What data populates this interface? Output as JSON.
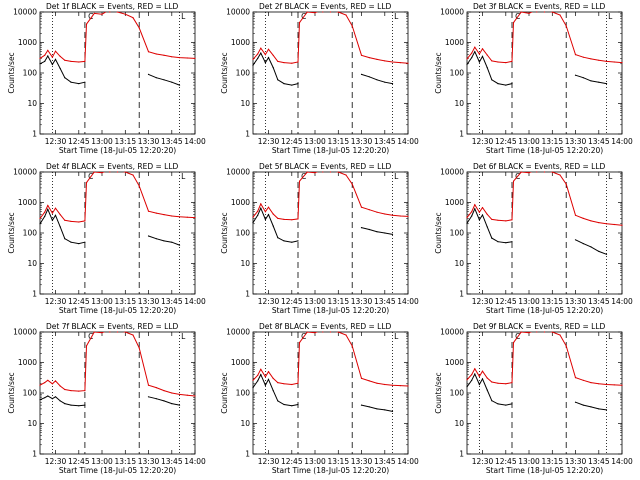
{
  "chart_data": [
    {
      "type": "line",
      "title": "Det 1f BLACK = Events, RED = LLD",
      "xlabel": "Start Time (18-Jul-05 12:20:20)",
      "ylabel": "Counts/sec",
      "xticks": [
        "12:30",
        "12:45",
        "13:00",
        "13:15",
        "13:30",
        "13:45",
        "14:00"
      ],
      "yticks": [
        "1",
        "10",
        "100",
        "1000",
        "10000"
      ],
      "ylim": [
        1,
        10000
      ],
      "ylog": true,
      "x": [
        "12:20",
        "12:23",
        "12:25",
        "12:28",
        "12:30",
        "12:33",
        "12:36",
        "12:40",
        "12:45",
        "12:49",
        "12:50",
        "12:55",
        "13:00",
        "13:05",
        "13:10",
        "13:15",
        "13:20",
        "13:24",
        "13:30",
        "13:35",
        "13:40",
        "13:45",
        "13:50",
        "13:55",
        "14:00"
      ],
      "series": [
        {
          "name": "BLACK = Events",
          "color": "#000000",
          "values": [
            200,
            240,
            360,
            190,
            280,
            140,
            70,
            50,
            45,
            50,
            null,
            null,
            null,
            null,
            null,
            null,
            null,
            null,
            90,
            70,
            60,
            50,
            40,
            null,
            null
          ]
        },
        {
          "name": "RED = LLD",
          "color": "#dd0000",
          "values": [
            300,
            380,
            550,
            330,
            520,
            350,
            260,
            240,
            230,
            240,
            4000,
            9000,
            8500,
            12000,
            10000,
            8500,
            6500,
            3000,
            500,
            420,
            380,
            340,
            320,
            310,
            300
          ]
        }
      ],
      "annotations": [
        "C",
        "L"
      ]
    },
    {
      "type": "line",
      "title": "Det 2f BLACK = Events, RED = LLD",
      "xlabel": "Start Time (18-Jul-05 12:20:20)",
      "ylabel": "Counts/sec",
      "xticks": [
        "12:30",
        "12:45",
        "13:00",
        "13:15",
        "13:30",
        "13:45",
        "14:00"
      ],
      "yticks": [
        "1",
        "10",
        "100",
        "1000",
        "10000"
      ],
      "ylim": [
        1,
        10000
      ],
      "ylog": true,
      "x": [
        "12:20",
        "12:23",
        "12:25",
        "12:28",
        "12:30",
        "12:33",
        "12:36",
        "12:40",
        "12:45",
        "12:49",
        "12:50",
        "12:55",
        "13:00",
        "13:05",
        "13:10",
        "13:15",
        "13:20",
        "13:24",
        "13:30",
        "13:35",
        "13:40",
        "13:45",
        "13:50",
        "13:55",
        "14:00"
      ],
      "series": [
        {
          "name": "BLACK = Events",
          "color": "#000000",
          "values": [
            180,
            300,
            450,
            220,
            320,
            150,
            60,
            45,
            40,
            45,
            null,
            null,
            null,
            null,
            null,
            null,
            null,
            null,
            90,
            75,
            60,
            50,
            45,
            null,
            null
          ]
        },
        {
          "name": "RED = LLD",
          "color": "#dd0000",
          "values": [
            280,
            420,
            650,
            400,
            600,
            380,
            240,
            220,
            210,
            230,
            4500,
            10000,
            9500,
            12000,
            11000,
            10000,
            8000,
            3500,
            380,
            320,
            280,
            250,
            230,
            220,
            210
          ]
        }
      ],
      "annotations": [
        "C",
        "L"
      ]
    },
    {
      "type": "line",
      "title": "Det 3f BLACK = Events, RED = LLD",
      "xlabel": "Start Time (18-Jul-05 12:20:20)",
      "ylabel": "Counts/sec",
      "xticks": [
        "12:30",
        "12:45",
        "13:00",
        "13:15",
        "13:30",
        "13:45",
        "14:00"
      ],
      "yticks": [
        "1",
        "10",
        "100",
        "1000",
        "10000"
      ],
      "ylim": [
        1,
        10000
      ],
      "ylog": true,
      "x": [
        "12:20",
        "12:23",
        "12:25",
        "12:28",
        "12:30",
        "12:33",
        "12:36",
        "12:40",
        "12:45",
        "12:49",
        "12:50",
        "12:55",
        "13:00",
        "13:05",
        "13:10",
        "13:15",
        "13:20",
        "13:24",
        "13:30",
        "13:35",
        "13:40",
        "13:45",
        "13:50",
        "13:55",
        "14:00"
      ],
      "series": [
        {
          "name": "BLACK = Events",
          "color": "#000000",
          "values": [
            190,
            320,
            500,
            230,
            350,
            150,
            60,
            45,
            40,
            45,
            null,
            null,
            null,
            null,
            null,
            null,
            null,
            null,
            85,
            70,
            55,
            50,
            45,
            null,
            null
          ]
        },
        {
          "name": "RED = LLD",
          "color": "#dd0000",
          "values": [
            290,
            450,
            700,
            420,
            620,
            390,
            250,
            230,
            220,
            240,
            4500,
            10000,
            9000,
            12000,
            11000,
            10000,
            8000,
            3500,
            400,
            330,
            290,
            260,
            240,
            230,
            220
          ]
        }
      ],
      "annotations": [
        "C",
        "L"
      ]
    },
    {
      "type": "line",
      "title": "Det 4f BLACK = Events, RED = LLD",
      "xlabel": "Start Time (18-Jul-05 12:20:20)",
      "ylabel": "Counts/sec",
      "xticks": [
        "12:30",
        "12:45",
        "13:00",
        "13:15",
        "13:30",
        "13:45",
        "14:00"
      ],
      "yticks": [
        "1",
        "10",
        "100",
        "1000",
        "10000"
      ],
      "ylim": [
        1,
        10000
      ],
      "ylog": true,
      "x": [
        "12:20",
        "12:23",
        "12:25",
        "12:28",
        "12:30",
        "12:33",
        "12:36",
        "12:40",
        "12:45",
        "12:49",
        "12:50",
        "12:55",
        "13:00",
        "13:05",
        "13:10",
        "13:15",
        "13:20",
        "13:24",
        "13:30",
        "13:35",
        "13:40",
        "13:45",
        "13:50",
        "13:55",
        "14:00"
      ],
      "series": [
        {
          "name": "BLACK = Events",
          "color": "#000000",
          "values": [
            200,
            350,
            600,
            260,
            380,
            160,
            65,
            50,
            45,
            50,
            null,
            null,
            null,
            null,
            null,
            null,
            null,
            null,
            80,
            65,
            55,
            50,
            40,
            null,
            null
          ]
        },
        {
          "name": "RED = LLD",
          "color": "#dd0000",
          "values": [
            300,
            480,
            800,
            450,
            650,
            400,
            260,
            240,
            230,
            250,
            4500,
            10000,
            9500,
            12000,
            11000,
            10000,
            8000,
            3500,
            520,
            450,
            400,
            360,
            340,
            330,
            320
          ]
        }
      ],
      "annotations": [
        "C",
        "L"
      ]
    },
    {
      "type": "line",
      "title": "Det 5f BLACK = Events, RED = LLD",
      "xlabel": "Start Time (18-Jul-05 12:20:20)",
      "ylabel": "Counts/sec",
      "xticks": [
        "12:30",
        "12:45",
        "13:00",
        "13:15",
        "13:30",
        "13:45",
        "14:00"
      ],
      "yticks": [
        "1",
        "10",
        "100",
        "1000",
        "10000"
      ],
      "ylim": [
        1,
        10000
      ],
      "ylog": true,
      "x": [
        "12:20",
        "12:23",
        "12:25",
        "12:28",
        "12:30",
        "12:33",
        "12:36",
        "12:40",
        "12:45",
        "12:49",
        "12:50",
        "12:55",
        "13:00",
        "13:05",
        "13:10",
        "13:15",
        "13:20",
        "13:24",
        "13:30",
        "13:35",
        "13:40",
        "13:45",
        "13:50",
        "13:55",
        "14:00"
      ],
      "series": [
        {
          "name": "BLACK = Events",
          "color": "#000000",
          "values": [
            220,
            380,
            650,
            280,
            400,
            170,
            70,
            55,
            50,
            55,
            null,
            null,
            null,
            null,
            null,
            null,
            null,
            null,
            150,
            130,
            110,
            100,
            90,
            null,
            null
          ]
        },
        {
          "name": "RED = LLD",
          "color": "#dd0000",
          "values": [
            330,
            520,
            900,
            500,
            700,
            420,
            300,
            280,
            270,
            290,
            5000,
            10000,
            9500,
            12000,
            11000,
            10000,
            8000,
            4000,
            700,
            580,
            480,
            420,
            380,
            360,
            350
          ]
        }
      ],
      "annotations": [
        "C",
        "L"
      ]
    },
    {
      "type": "line",
      "title": "Det 6f BLACK = Events, RED = LLD",
      "xlabel": "Start Time (18-Jul-05 12:20:20)",
      "ylabel": "Counts/sec",
      "xticks": [
        "12:30",
        "12:45",
        "13:00",
        "13:15",
        "13:30",
        "13:45",
        "14:00"
      ],
      "yticks": [
        "1",
        "10",
        "100",
        "1000",
        "10000"
      ],
      "ylim": [
        1,
        10000
      ],
      "ylog": true,
      "x": [
        "12:20",
        "12:23",
        "12:25",
        "12:28",
        "12:30",
        "12:33",
        "12:36",
        "12:40",
        "12:45",
        "12:49",
        "12:50",
        "12:55",
        "13:00",
        "13:05",
        "13:10",
        "13:15",
        "13:20",
        "13:24",
        "13:30",
        "13:35",
        "13:40",
        "13:45",
        "13:50",
        "13:55",
        "14:00"
      ],
      "series": [
        {
          "name": "BLACK = Events",
          "color": "#000000",
          "values": [
            210,
            360,
            620,
            270,
            390,
            160,
            68,
            52,
            48,
            52,
            null,
            null,
            null,
            null,
            null,
            null,
            null,
            null,
            60,
            45,
            35,
            25,
            20,
            null,
            null
          ]
        },
        {
          "name": "RED = LLD",
          "color": "#dd0000",
          "values": [
            320,
            500,
            850,
            480,
            680,
            410,
            280,
            260,
            250,
            270,
            5000,
            10000,
            9500,
            12000,
            11000,
            10000,
            8000,
            4000,
            380,
            300,
            250,
            220,
            200,
            190,
            180
          ]
        }
      ],
      "annotations": [
        "C",
        "L"
      ]
    },
    {
      "type": "line",
      "title": "Det 7f BLACK = Events, RED = LLD",
      "xlabel": "Start Time (18-Jul-05 12:20:20)",
      "ylabel": "Counts/sec",
      "xticks": [
        "12:30",
        "12:45",
        "13:00",
        "13:15",
        "13:30",
        "13:45",
        "14:00"
      ],
      "yticks": [
        "1",
        "10",
        "100",
        "1000",
        "10000"
      ],
      "ylim": [
        1,
        10000
      ],
      "ylog": true,
      "x": [
        "12:20",
        "12:23",
        "12:25",
        "12:28",
        "12:30",
        "12:33",
        "12:36",
        "12:40",
        "12:45",
        "12:49",
        "12:50",
        "12:55",
        "13:00",
        "13:05",
        "13:10",
        "13:15",
        "13:20",
        "13:24",
        "13:30",
        "13:35",
        "13:40",
        "13:45",
        "13:50",
        "13:55",
        "14:00"
      ],
      "series": [
        {
          "name": "BLACK = Events",
          "color": "#000000",
          "values": [
            60,
            70,
            80,
            65,
            75,
            55,
            45,
            40,
            38,
            40,
            null,
            null,
            null,
            null,
            null,
            null,
            null,
            null,
            75,
            65,
            55,
            45,
            40,
            null,
            null
          ]
        },
        {
          "name": "RED = LLD",
          "color": "#dd0000",
          "values": [
            180,
            220,
            260,
            200,
            250,
            170,
            130,
            120,
            115,
            120,
            3500,
            10000,
            9500,
            12000,
            11000,
            10000,
            8000,
            3000,
            180,
            150,
            120,
            100,
            90,
            85,
            80
          ]
        }
      ],
      "annotations": [
        "C",
        "L"
      ]
    },
    {
      "type": "line",
      "title": "Det 8f BLACK = Events, RED = LLD",
      "xlabel": "Start Time (18-Jul-05 12:20:20)",
      "ylabel": "Counts/sec",
      "xticks": [
        "12:30",
        "12:45",
        "13:00",
        "13:15",
        "13:30",
        "13:45",
        "14:00"
      ],
      "yticks": [
        "1",
        "10",
        "100",
        "1000",
        "10000"
      ],
      "ylim": [
        1,
        10000
      ],
      "ylog": true,
      "x": [
        "12:20",
        "12:23",
        "12:25",
        "12:28",
        "12:30",
        "12:33",
        "12:36",
        "12:40",
        "12:45",
        "12:49",
        "12:50",
        "12:55",
        "13:00",
        "13:05",
        "13:10",
        "13:15",
        "13:20",
        "13:24",
        "13:30",
        "13:35",
        "13:40",
        "13:45",
        "13:50",
        "13:55",
        "14:00"
      ],
      "series": [
        {
          "name": "BLACK = Events",
          "color": "#000000",
          "values": [
            150,
            250,
            400,
            180,
            280,
            120,
            55,
            42,
            38,
            42,
            null,
            null,
            null,
            null,
            null,
            null,
            null,
            null,
            40,
            35,
            30,
            28,
            25,
            null,
            null
          ]
        },
        {
          "name": "RED = LLD",
          "color": "#dd0000",
          "values": [
            260,
            380,
            600,
            340,
            500,
            300,
            220,
            200,
            190,
            210,
            4500,
            10000,
            9500,
            12000,
            11000,
            10000,
            8000,
            3500,
            300,
            250,
            210,
            190,
            180,
            175,
            170
          ]
        }
      ],
      "annotations": [
        "C",
        "L"
      ]
    },
    {
      "type": "line",
      "title": "Det 9f BLACK = Events, RED = LLD",
      "xlabel": "Start Time (18-Jul-05 12:20:20)",
      "ylabel": "Counts/sec",
      "xticks": [
        "12:30",
        "12:45",
        "13:00",
        "13:15",
        "13:30",
        "13:45",
        "14:00"
      ],
      "yticks": [
        "1",
        "10",
        "100",
        "1000",
        "10000"
      ],
      "ylim": [
        1,
        10000
      ],
      "ylog": true,
      "x": [
        "12:20",
        "12:23",
        "12:25",
        "12:28",
        "12:30",
        "12:33",
        "12:36",
        "12:40",
        "12:45",
        "12:49",
        "12:50",
        "12:55",
        "13:00",
        "13:05",
        "13:10",
        "13:15",
        "13:20",
        "13:24",
        "13:30",
        "13:35",
        "13:40",
        "13:45",
        "13:50",
        "13:55",
        "14:00"
      ],
      "series": [
        {
          "name": "BLACK = Events",
          "color": "#000000",
          "values": [
            160,
            260,
            420,
            190,
            290,
            125,
            56,
            44,
            40,
            44,
            null,
            null,
            null,
            null,
            null,
            null,
            null,
            null,
            50,
            40,
            35,
            30,
            28,
            null,
            null
          ]
        },
        {
          "name": "RED = LLD",
          "color": "#dd0000",
          "values": [
            270,
            400,
            620,
            350,
            520,
            310,
            230,
            210,
            200,
            220,
            4500,
            10000,
            9500,
            12000,
            11000,
            10000,
            8000,
            3500,
            320,
            260,
            220,
            200,
            190,
            185,
            180
          ]
        }
      ],
      "annotations": [
        "C",
        "L"
      ]
    }
  ]
}
